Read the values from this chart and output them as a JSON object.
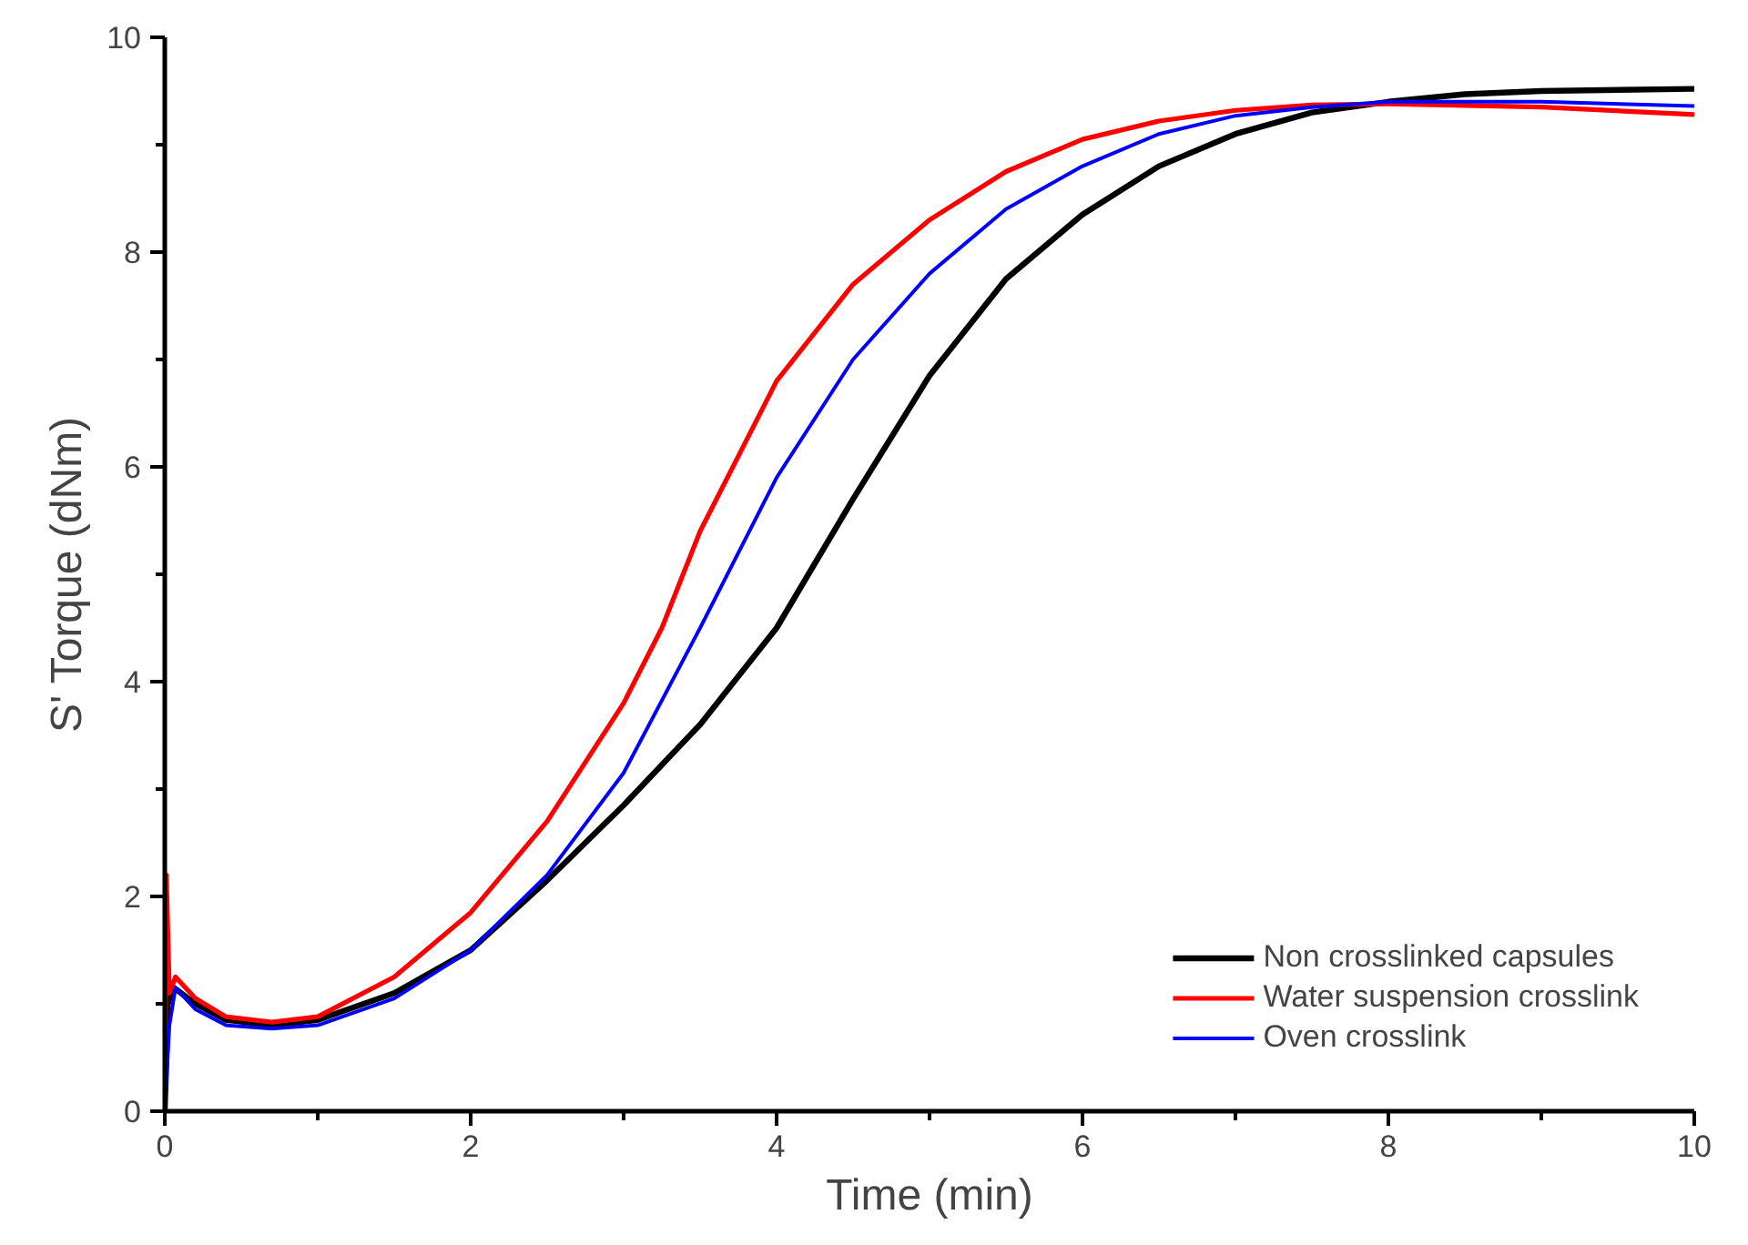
{
  "chart_data": {
    "type": "line",
    "xlabel": "Time (min)",
    "ylabel": "S' Torque (dNm)",
    "xlim": [
      0,
      10
    ],
    "ylim": [
      0,
      10
    ],
    "xticks": [
      0,
      2,
      4,
      6,
      8,
      10
    ],
    "yticks": [
      0,
      2,
      4,
      6,
      8,
      10
    ],
    "grid": false,
    "legend": "bottom right",
    "line_style": "solid",
    "series": [
      {
        "name": "Non crosslinked capsules",
        "color": "#000000",
        "x": [
          0,
          0.02,
          0.06,
          0.2,
          0.4,
          0.7,
          1.0,
          1.5,
          2,
          2.5,
          3,
          3.5,
          4,
          4.5,
          5,
          5.5,
          6,
          6.5,
          7,
          7.5,
          8,
          8.5,
          9,
          10
        ],
        "values": [
          0,
          1.0,
          1.15,
          1.0,
          0.85,
          0.8,
          0.85,
          1.1,
          1.5,
          2.15,
          2.85,
          3.6,
          4.5,
          5.7,
          6.85,
          7.75,
          8.35,
          8.8,
          9.1,
          9.3,
          9.4,
          9.47,
          9.5,
          9.52
        ]
      },
      {
        "name": "Water suspension crosslink",
        "color": "#ff0000",
        "x": [
          0,
          0.01,
          0.03,
          0.07,
          0.2,
          0.4,
          0.7,
          1.0,
          1.5,
          2,
          2.5,
          3,
          3.25,
          3.5,
          4,
          4.5,
          5,
          5.5,
          6,
          6.5,
          7,
          7.5,
          8,
          9,
          10
        ],
        "values": [
          0,
          2.2,
          1.1,
          1.25,
          1.05,
          0.88,
          0.83,
          0.88,
          1.25,
          1.85,
          2.7,
          3.8,
          4.5,
          5.4,
          6.8,
          7.7,
          8.3,
          8.75,
          9.05,
          9.22,
          9.32,
          9.37,
          9.38,
          9.35,
          9.28
        ]
      },
      {
        "name": "Oven crosslink",
        "color": "#0000ff",
        "x": [
          0,
          0.03,
          0.07,
          0.2,
          0.4,
          0.7,
          1.0,
          1.5,
          2,
          2.5,
          3,
          3.5,
          4,
          4.5,
          5,
          5.5,
          6,
          6.5,
          7,
          7.5,
          8,
          9,
          10
        ],
        "values": [
          0,
          0.8,
          1.15,
          0.95,
          0.8,
          0.77,
          0.8,
          1.05,
          1.5,
          2.2,
          3.15,
          4.5,
          5.9,
          7.0,
          7.8,
          8.4,
          8.8,
          9.1,
          9.27,
          9.35,
          9.4,
          9.4,
          9.36
        ]
      }
    ]
  }
}
